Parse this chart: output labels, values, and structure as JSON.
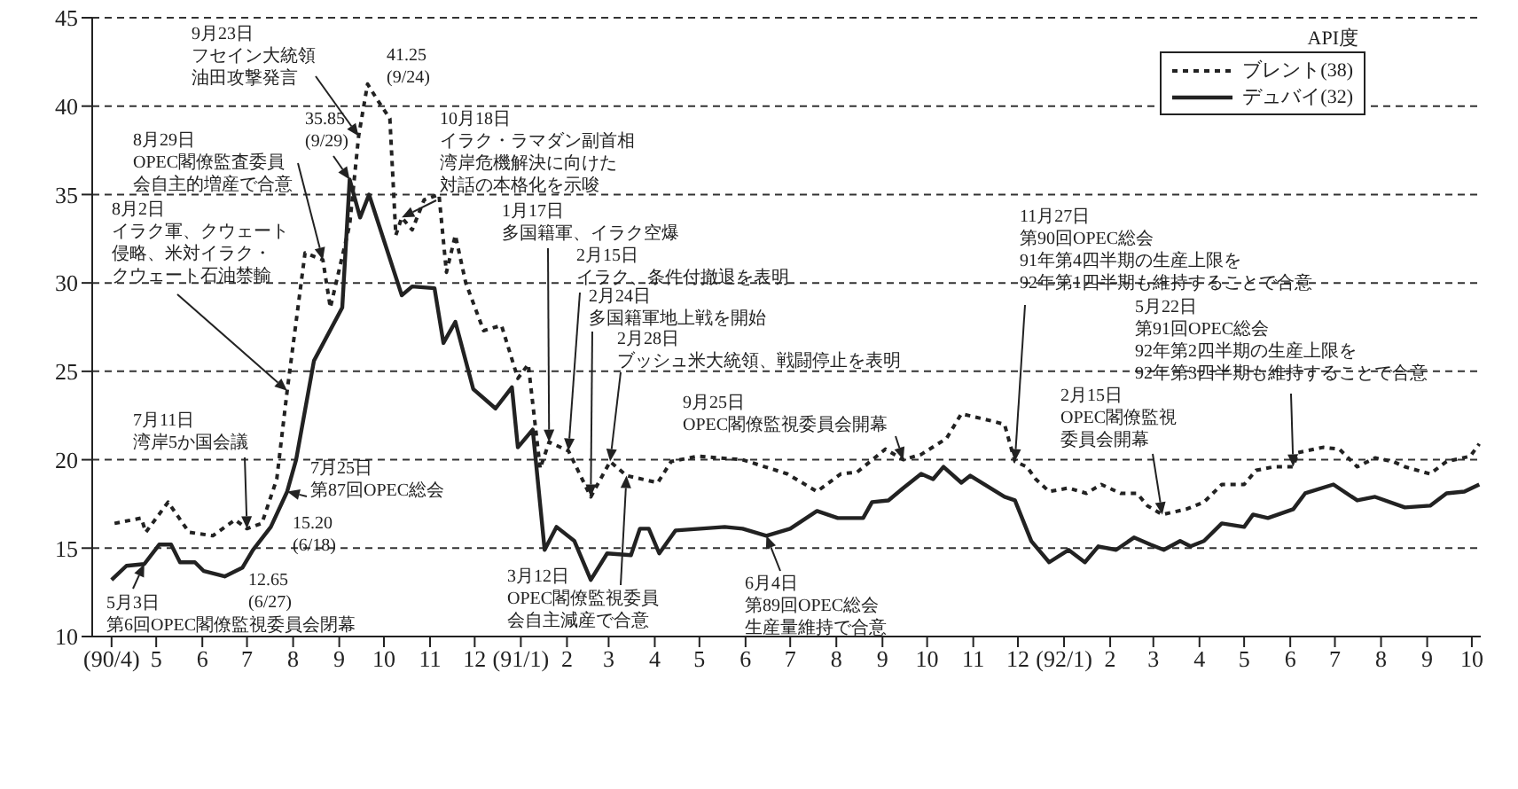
{
  "chart_data": {
    "type": "line",
    "legend_title": "API度",
    "legend": "top right",
    "grid": "y",
    "xlim": [
      "1990-03-19",
      "1992-10-07"
    ],
    "xticks": [
      {
        "value": "1990-04",
        "label": "(90/4)"
      },
      {
        "value": "1990-05",
        "label": "5"
      },
      {
        "value": "1990-06",
        "label": "6"
      },
      {
        "value": "1990-07",
        "label": "7"
      },
      {
        "value": "1990-08",
        "label": "8"
      },
      {
        "value": "1990-09",
        "label": "9"
      },
      {
        "value": "1990-10",
        "label": "10"
      },
      {
        "value": "1990-11",
        "label": "11"
      },
      {
        "value": "1990-12",
        "label": "12"
      },
      {
        "value": "1991-01",
        "label": "(91/1)"
      },
      {
        "value": "1991-02",
        "label": "2"
      },
      {
        "value": "1991-03",
        "label": "3"
      },
      {
        "value": "1991-04",
        "label": "4"
      },
      {
        "value": "1991-05",
        "label": "5"
      },
      {
        "value": "1991-06",
        "label": "6"
      },
      {
        "value": "1991-07",
        "label": "7"
      },
      {
        "value": "1991-08",
        "label": "8"
      },
      {
        "value": "1991-09",
        "label": "9"
      },
      {
        "value": "1991-10",
        "label": "10"
      },
      {
        "value": "1991-11",
        "label": "11"
      },
      {
        "value": "1991-12",
        "label": "12"
      },
      {
        "value": "1992-01",
        "label": "(92/1)"
      },
      {
        "value": "1992-02",
        "label": "2"
      },
      {
        "value": "1992-03",
        "label": "3"
      },
      {
        "value": "1992-04",
        "label": "4"
      },
      {
        "value": "1992-05",
        "label": "5"
      },
      {
        "value": "1992-06",
        "label": "6"
      },
      {
        "value": "1992-07",
        "label": "7"
      },
      {
        "value": "1992-08",
        "label": "8"
      },
      {
        "value": "1992-09",
        "label": "9"
      },
      {
        "value": "1992-10",
        "label": "10"
      }
    ],
    "ylim": [
      10,
      45
    ],
    "yticks": [
      10,
      15,
      20,
      25,
      30,
      35,
      40,
      45
    ],
    "series": [
      {
        "name": "ブレント(38)",
        "color": "#222222",
        "line_style": "dotted",
        "x": [
          "1990-04-03",
          "1990-04-21",
          "1990-04-24",
          "1990-05-09",
          "1990-05-23",
          "1990-06-08",
          "1990-06-23",
          "1990-07-01",
          "1990-07-11",
          "1990-07-21",
          "1990-07-28",
          "1990-08-09",
          "1990-08-21",
          "1990-08-26",
          "1990-09-08",
          "1990-09-14",
          "1990-09-20",
          "1990-09-27",
          "1990-10-05",
          "1990-10-09",
          "1990-10-13",
          "1990-10-20",
          "1990-10-28",
          "1990-11-07",
          "1990-11-12",
          "1990-11-18",
          "1990-11-25",
          "1990-12-07",
          "1990-12-19",
          "1990-12-30",
          "1991-01-06",
          "1991-01-14",
          "1991-01-20",
          "1991-02-02",
          "1991-02-17",
          "1991-03-02",
          "1991-03-13",
          "1991-04-03",
          "1991-04-12",
          "1991-04-30",
          "1991-05-30",
          "1991-06-29",
          "1991-07-19",
          "1991-08-04",
          "1991-08-15",
          "1991-09-03",
          "1991-09-15",
          "1991-09-27",
          "1991-10-14",
          "1991-10-24",
          "1991-11-13",
          "1991-11-22",
          "1991-11-29",
          "1991-12-07",
          "1991-12-13",
          "1991-12-22",
          "1992-01-04",
          "1992-01-16",
          "1992-01-26",
          "1992-02-08",
          "1992-02-19",
          "1992-02-26",
          "1992-03-07",
          "1992-03-23",
          "1992-04-04",
          "1992-04-16",
          "1992-05-01",
          "1992-05-09",
          "1992-05-21",
          "1992-06-03",
          "1992-06-06",
          "1992-06-23",
          "1992-07-04",
          "1992-07-16",
          "1992-07-28",
          "1992-08-09",
          "1992-08-17",
          "1992-09-03",
          "1992-09-14",
          "1992-09-30",
          "1992-10-06"
        ],
        "values": [
          16.4,
          16.7,
          15.9,
          17.6,
          15.9,
          15.7,
          16.6,
          16.1,
          16.4,
          18.9,
          23.9,
          31.7,
          31.3,
          28.6,
          33.3,
          38.3,
          41.25,
          40.3,
          39.3,
          32.7,
          33.7,
          33,
          34.7,
          35,
          30.6,
          32.7,
          30,
          27.3,
          27.6,
          24.6,
          25.4,
          19.5,
          21,
          20.5,
          17.9,
          19.9,
          19.1,
          18.7,
          19.9,
          20.2,
          20.0,
          19.2,
          18.2,
          19.2,
          19.3,
          20.6,
          20.0,
          20.3,
          21.2,
          22.6,
          22.2,
          22.0,
          19.9,
          19.6,
          18.9,
          18.2,
          18.4,
          18.1,
          18.6,
          18.1,
          18.1,
          17.4,
          16.9,
          17.2,
          17.6,
          18.6,
          18.6,
          19.4,
          19.6,
          19.6,
          20.4,
          20.7,
          20.6,
          19.6,
          20.1,
          19.9,
          19.6,
          19.2,
          19.9,
          20.2,
          20.9
        ]
      },
      {
        "name": "デュバイ(32)",
        "color": "#222222",
        "line_style": "solid",
        "x": [
          "1990-04-01",
          "1990-04-11",
          "1990-04-23",
          "1990-05-03",
          "1990-05-11",
          "1990-05-17",
          "1990-05-27",
          "1990-06-02",
          "1990-06-16",
          "1990-06-28",
          "1990-07-05",
          "1990-07-17",
          "1990-07-28",
          "1990-08-03",
          "1990-08-15",
          "1990-09-03",
          "1990-09-08",
          "1990-09-15",
          "1990-09-21",
          "1990-10-13",
          "1990-10-20",
          "1990-11-04",
          "1990-11-10",
          "1990-11-18",
          "1990-11-30",
          "1990-12-15",
          "1990-12-26",
          "1990-12-30",
          "1991-01-09",
          "1991-01-17",
          "1991-01-25",
          "1991-02-06",
          "1991-02-17",
          "1991-02-28",
          "1991-03-16",
          "1991-03-22",
          "1991-03-28",
          "1991-04-04",
          "1991-04-15",
          "1991-05-18",
          "1991-05-30",
          "1991-06-15",
          "1991-07-01",
          "1991-07-19",
          "1991-08-02",
          "1991-08-19",
          "1991-08-25",
          "1991-09-05",
          "1991-09-15",
          "1991-09-27",
          "1991-10-05",
          "1991-10-12",
          "1991-10-24",
          "1991-10-30",
          "1991-11-22",
          "1991-11-29",
          "1991-12-10",
          "1991-12-22",
          "1992-01-04",
          "1992-01-15",
          "1992-01-24",
          "1992-02-05",
          "1992-02-17",
          "1992-02-28",
          "1992-03-08",
          "1992-03-19",
          "1992-03-26",
          "1992-04-04",
          "1992-04-16",
          "1992-05-01",
          "1992-05-07",
          "1992-05-17",
          "1992-06-03",
          "1992-06-11",
          "1992-06-30",
          "1992-07-16",
          "1992-07-28",
          "1992-08-17",
          "1992-09-03",
          "1992-09-14",
          "1992-09-26",
          "1992-10-06"
        ],
        "values": [
          13.2,
          14.0,
          14.1,
          15.2,
          15.2,
          14.2,
          14.2,
          13.7,
          13.4,
          13.9,
          14.9,
          16.2,
          18.2,
          20,
          25.6,
          28.6,
          35.85,
          33.7,
          35,
          29.3,
          29.8,
          29.7,
          26.6,
          27.8,
          24,
          22.9,
          24.1,
          20.7,
          21.7,
          14.9,
          16.2,
          15.4,
          13.2,
          14.7,
          14.6,
          16.1,
          16.1,
          14.7,
          16.0,
          16.2,
          16.1,
          15.7,
          16.1,
          17.1,
          16.7,
          16.7,
          17.6,
          17.7,
          18.4,
          19.2,
          18.9,
          19.6,
          18.7,
          19.1,
          17.9,
          17.7,
          15.4,
          14.2,
          14.9,
          14.2,
          15.1,
          14.9,
          15.6,
          15.2,
          14.9,
          15.4,
          15.1,
          15.4,
          16.4,
          16.2,
          16.9,
          16.7,
          17.2,
          18.1,
          18.6,
          17.7,
          17.9,
          17.3,
          17.4,
          18.1,
          18.2,
          18.6
        ]
      }
    ],
    "annotations": [
      {
        "text": "9月23日フセイン大統領油田攻撃発言",
        "x": "1990-09-14",
        "y": 38.3
      },
      "41.25(9/24)",
      {
        "text": "35.85(9/29)",
        "x": "1990-09-08",
        "y": 35.85
      },
      {
        "text": "10月18日イラク・ラマダン副首相湾岸危機解決に向けた対話の本格化を示唆",
        "x": "1990-10-13",
        "y": 33.7
      },
      {
        "text": "8月29日OPEC閣僚監査委員会自主的増産で合意",
        "x": "1990-08-21",
        "y": 31.3
      },
      {
        "text": "8月2日イラク軍、クウェート侵略、米対イラク・クウェート石油禁輸",
        "x": "1990-07-28",
        "y": 23.9
      },
      {
        "text": "1月17日多国籍軍、イラク空爆",
        "x": "1991-01-20",
        "y": 21
      },
      {
        "text": "2月15日イラク、条件付撤退を表明",
        "x": "1991-02-02",
        "y": 20.5
      },
      {
        "text": "2月24日多国籍軍地上戦を開始",
        "x": "1991-02-17",
        "y": 17.9
      },
      {
        "text": "2月28日ブッシュ米大統領、戦闘停止を表明",
        "x": "1991-03-02",
        "y": 19.9
      },
      {
        "text": "9月25日OPEC閣僚監視委員会開幕",
        "x": "1991-09-15",
        "y": 20.0
      },
      {
        "text": "11月27日第90回OPEC総会91年第4四半期の生産上限を92年第1四半期も維持することで合意",
        "x": "1991-11-29",
        "y": 19.9
      },
      {
        "text": "5月22日第91回OPEC総会92年第2四半期の生産上限を92年第3四半期も維持することで合意",
        "x": "1992-06-03",
        "y": 19.6
      },
      {
        "text": "2月15日OPEC閣僚監視委員会開幕",
        "x": "1992-03-07",
        "y": 16.9
      },
      {
        "text": "7月11日湾岸5か国会議",
        "x": "1990-07-01",
        "y": 16.1
      },
      {
        "text": "7月25日第87回OPEC総会",
        "x": "1990-07-28",
        "y": 18.2
      },
      "15.20(6/18)",
      "12.65(6/27)",
      {
        "text": "5月3日第6回OPEC閣僚監視委員会閉幕",
        "x": "1990-04-23",
        "y": 14.1
      },
      {
        "text": "3月12日OPEC閣僚監視委員会自主減産で合意",
        "x": "1991-03-13",
        "y": 19.1
      },
      {
        "text": "6月4日第89回OPEC総会生産量維持で合意",
        "x": "1991-06-15",
        "y": 15.7
      }
    ]
  }
}
